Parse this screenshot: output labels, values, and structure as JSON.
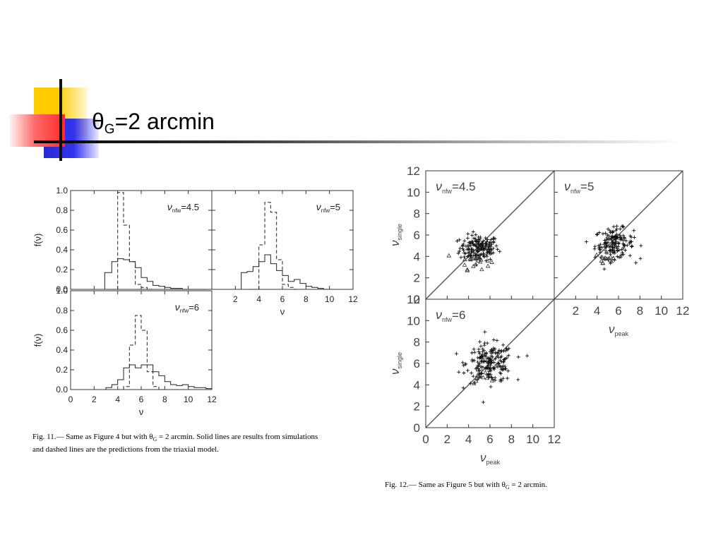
{
  "slide": {
    "title_main": "θ",
    "title_sub": "G",
    "title_rest": "=2 arcmin"
  },
  "fig11": {
    "caption_line1": "Fig. 11.— Same as Figure 4 but with θ",
    "caption_sub": "G",
    "caption_line1b": " = 2 arcmin. Solid lines are results from simulations",
    "caption_line2": "and dashed lines are the predictions from the triaxial model.",
    "ylabel": "f(ν)",
    "xlabel": "ν",
    "yticks": [
      "0.0",
      "0.2",
      "0.4",
      "0.6",
      "0.8",
      "1.0"
    ],
    "xticks": [
      "0",
      "2",
      "4",
      "6",
      "8",
      "10",
      "12"
    ],
    "xticks_top": [
      "2",
      "4",
      "6",
      "8",
      "10",
      "12"
    ]
  },
  "fig12": {
    "caption_pre": "Fig. 12.— Same as Figure 5 but with θ",
    "caption_sub": "G",
    "caption_post": " = 2 arcmin.",
    "ylabel": "ν",
    "ylabel_sub": "single",
    "xlabel": "ν",
    "xlabel_sub": "peak",
    "yticks": [
      "0",
      "2",
      "4",
      "6",
      "8",
      "10",
      "12"
    ],
    "xticks": [
      "0",
      "2",
      "4",
      "6",
      "8",
      "10",
      "12"
    ],
    "xticks_right": [
      "2",
      "4",
      "6",
      "8",
      "10",
      "12"
    ]
  },
  "chart_data": [
    {
      "type": "line",
      "panel": "fig11-top-left",
      "label": "νnfw=4.5",
      "label_main": "ν",
      "label_sub": "nfw",
      "label_value": "=4.5",
      "xlim": [
        0,
        12
      ],
      "ylim": [
        0,
        1.0
      ],
      "series": [
        {
          "style": "solid",
          "x": [
            2.9,
            3.5,
            4.0,
            4.5,
            5.0,
            5.5,
            6.0,
            6.5,
            7.0,
            7.5,
            8.0,
            8.5,
            9.0,
            9.5,
            10.0,
            10.5,
            11.0
          ],
          "values": [
            0.17,
            0.28,
            0.31,
            0.3,
            0.28,
            0.22,
            0.12,
            0.08,
            0.04,
            0.03,
            0.02,
            0.01,
            0.01,
            0.0,
            0.0,
            0.0,
            0.0
          ]
        },
        {
          "style": "dashed",
          "x": [
            3.5,
            4.0,
            4.5,
            5.0,
            5.5,
            6.0,
            6.5
          ],
          "values": [
            0.0,
            0.98,
            0.65,
            0.28,
            0.05,
            0.02,
            0.0
          ]
        }
      ]
    },
    {
      "type": "line",
      "panel": "fig11-top-right",
      "label": "νnfw=5",
      "label_main": "ν",
      "label_sub": "nfw",
      "label_value": "=5",
      "xlim": [
        0,
        12
      ],
      "ylim": [
        0,
        1.0
      ],
      "series": [
        {
          "style": "solid",
          "x": [
            2.5,
            3.0,
            3.5,
            4.0,
            4.5,
            5.0,
            5.5,
            6.0,
            6.5,
            7.0,
            7.5,
            8.0,
            8.5,
            9.0,
            9.5
          ],
          "values": [
            0.17,
            0.18,
            0.23,
            0.28,
            0.35,
            0.26,
            0.19,
            0.14,
            0.08,
            0.1,
            0.06,
            0.03,
            0.02,
            0.01,
            0.0
          ]
        },
        {
          "style": "dashed",
          "x": [
            3.5,
            4.0,
            4.5,
            5.0,
            5.5,
            6.0,
            6.5,
            7.0
          ],
          "values": [
            0.0,
            0.45,
            0.88,
            0.78,
            0.3,
            0.05,
            0.02,
            0.0
          ]
        }
      ]
    },
    {
      "type": "line",
      "panel": "fig11-bottom-left",
      "label": "νnfw=6",
      "label_main": "ν",
      "label_sub": "nfw",
      "label_value": "=6",
      "xlim": [
        0,
        12
      ],
      "ylim": [
        0,
        1.0
      ],
      "series": [
        {
          "style": "solid",
          "x": [
            3.0,
            3.5,
            4.0,
            4.5,
            5.0,
            5.5,
            6.0,
            6.5,
            7.0,
            7.5,
            8.0,
            8.5,
            9.0,
            9.5,
            10.0,
            10.5,
            11.0,
            11.5
          ],
          "values": [
            0.02,
            0.05,
            0.1,
            0.22,
            0.25,
            0.22,
            0.25,
            0.25,
            0.18,
            0.14,
            0.08,
            0.05,
            0.04,
            0.05,
            0.03,
            0.02,
            0.02,
            0.01
          ]
        },
        {
          "style": "dashed",
          "x": [
            4.5,
            5.0,
            5.5,
            6.0,
            6.5,
            7.0,
            7.5
          ],
          "values": [
            0.03,
            0.45,
            0.75,
            0.6,
            0.18,
            0.03,
            0.0
          ]
        }
      ]
    },
    {
      "type": "scatter",
      "panel": "fig12-top-left",
      "label": "νnfw=4.5",
      "label_main": "ν",
      "label_sub": "nfw",
      "label_value": "=4.5",
      "xlim": [
        2,
        12
      ],
      "ylim": [
        0,
        12
      ],
      "clouds": [
        {
          "marker": "plus",
          "cx": 5.0,
          "cy": 4.8,
          "sx": 0.9,
          "sy": 0.6,
          "n": 170
        },
        {
          "marker": "triangle",
          "cx": 4.6,
          "cy": 3.6,
          "sx": 0.7,
          "sy": 0.4,
          "n": 22
        }
      ],
      "diagonal": true
    },
    {
      "type": "scatter",
      "panel": "fig12-top-right",
      "label": "νnfw=5",
      "label_main": "ν",
      "label_sub": "nfw",
      "label_value": "=5",
      "xlim": [
        2,
        12
      ],
      "ylim": [
        0,
        12
      ],
      "clouds": [
        {
          "marker": "plus",
          "cx": 5.6,
          "cy": 5.2,
          "sx": 0.9,
          "sy": 0.7,
          "n": 150
        },
        {
          "marker": "triangle",
          "cx": 4.8,
          "cy": 3.8,
          "sx": 0.6,
          "sy": 0.4,
          "n": 14
        }
      ],
      "diagonal": true
    },
    {
      "type": "scatter",
      "panel": "fig12-bottom-left",
      "label": "νnfw=6",
      "label_main": "ν",
      "label_sub": "nfw",
      "label_value": "=6",
      "xlim": [
        0,
        12
      ],
      "ylim": [
        0,
        12
      ],
      "clouds": [
        {
          "marker": "plus",
          "cx": 6.0,
          "cy": 6.0,
          "sx": 1.1,
          "sy": 0.9,
          "n": 190
        },
        {
          "marker": "triangle",
          "cx": 5.2,
          "cy": 4.8,
          "sx": 0.6,
          "sy": 0.4,
          "n": 10
        }
      ],
      "diagonal": true
    }
  ]
}
